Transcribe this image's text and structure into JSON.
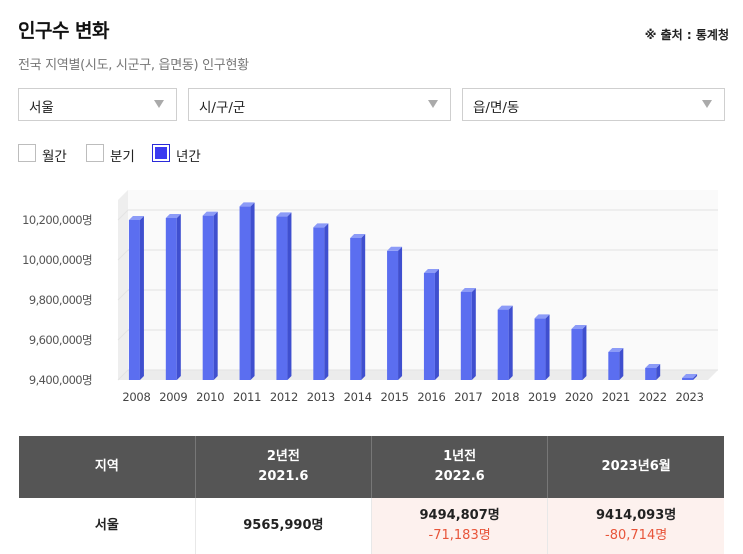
{
  "header": {
    "title": "인구수 변화",
    "source": "※ 출처 : 통계청",
    "subtitle": "전국 지역별(시도, 시군구, 읍면동) 인구현황"
  },
  "filters": {
    "sido": "서울",
    "sigungu": "시/구/군",
    "eupmyeondong": "읍/면/동"
  },
  "periods": [
    {
      "label": "월간",
      "checked": false
    },
    {
      "label": "분기",
      "checked": false
    },
    {
      "label": "년간",
      "checked": true
    }
  ],
  "colors": {
    "bar_front": "#5b6ef0",
    "bar_side": "#3f4fcf",
    "bar_top": "#8c9bf7",
    "header_bg": "#555555",
    "negative": "#e8553a"
  },
  "chart_data": {
    "type": "bar",
    "categories": [
      "2008",
      "2009",
      "2010",
      "2011",
      "2012",
      "2013",
      "2014",
      "2015",
      "2016",
      "2017",
      "2018",
      "2019",
      "2020",
      "2021",
      "2022",
      "2023"
    ],
    "values": [
      10200000,
      10210000,
      10222000,
      10268000,
      10218000,
      10163000,
      10110000,
      10046000,
      9935000,
      9840000,
      9752000,
      9708000,
      9655000,
      9540000,
      9460000,
      9410000
    ],
    "ylim": [
      9400000,
      10300000
    ],
    "yticks": [
      9400000,
      9600000,
      9800000,
      10000000,
      10200000
    ],
    "ytick_labels": [
      "9,400,000명",
      "9,600,000명",
      "9,800,000명",
      "10,000,000명",
      "10,200,000명"
    ],
    "title": "",
    "xlabel": "",
    "ylabel": ""
  },
  "table": {
    "headers": [
      {
        "line1": "지역",
        "line2": ""
      },
      {
        "line1": "2년전",
        "line2": "2021.6"
      },
      {
        "line1": "1년전",
        "line2": "2022.6"
      },
      {
        "line1": "2023년6월",
        "line2": ""
      }
    ],
    "rows": [
      {
        "region": "서울",
        "two_years_ago": "9565,990명",
        "one_year_ago": "9494,807명",
        "one_year_ago_diff": "-71,183명",
        "current": "9414,093명",
        "current_diff": "-80,714명"
      }
    ]
  }
}
